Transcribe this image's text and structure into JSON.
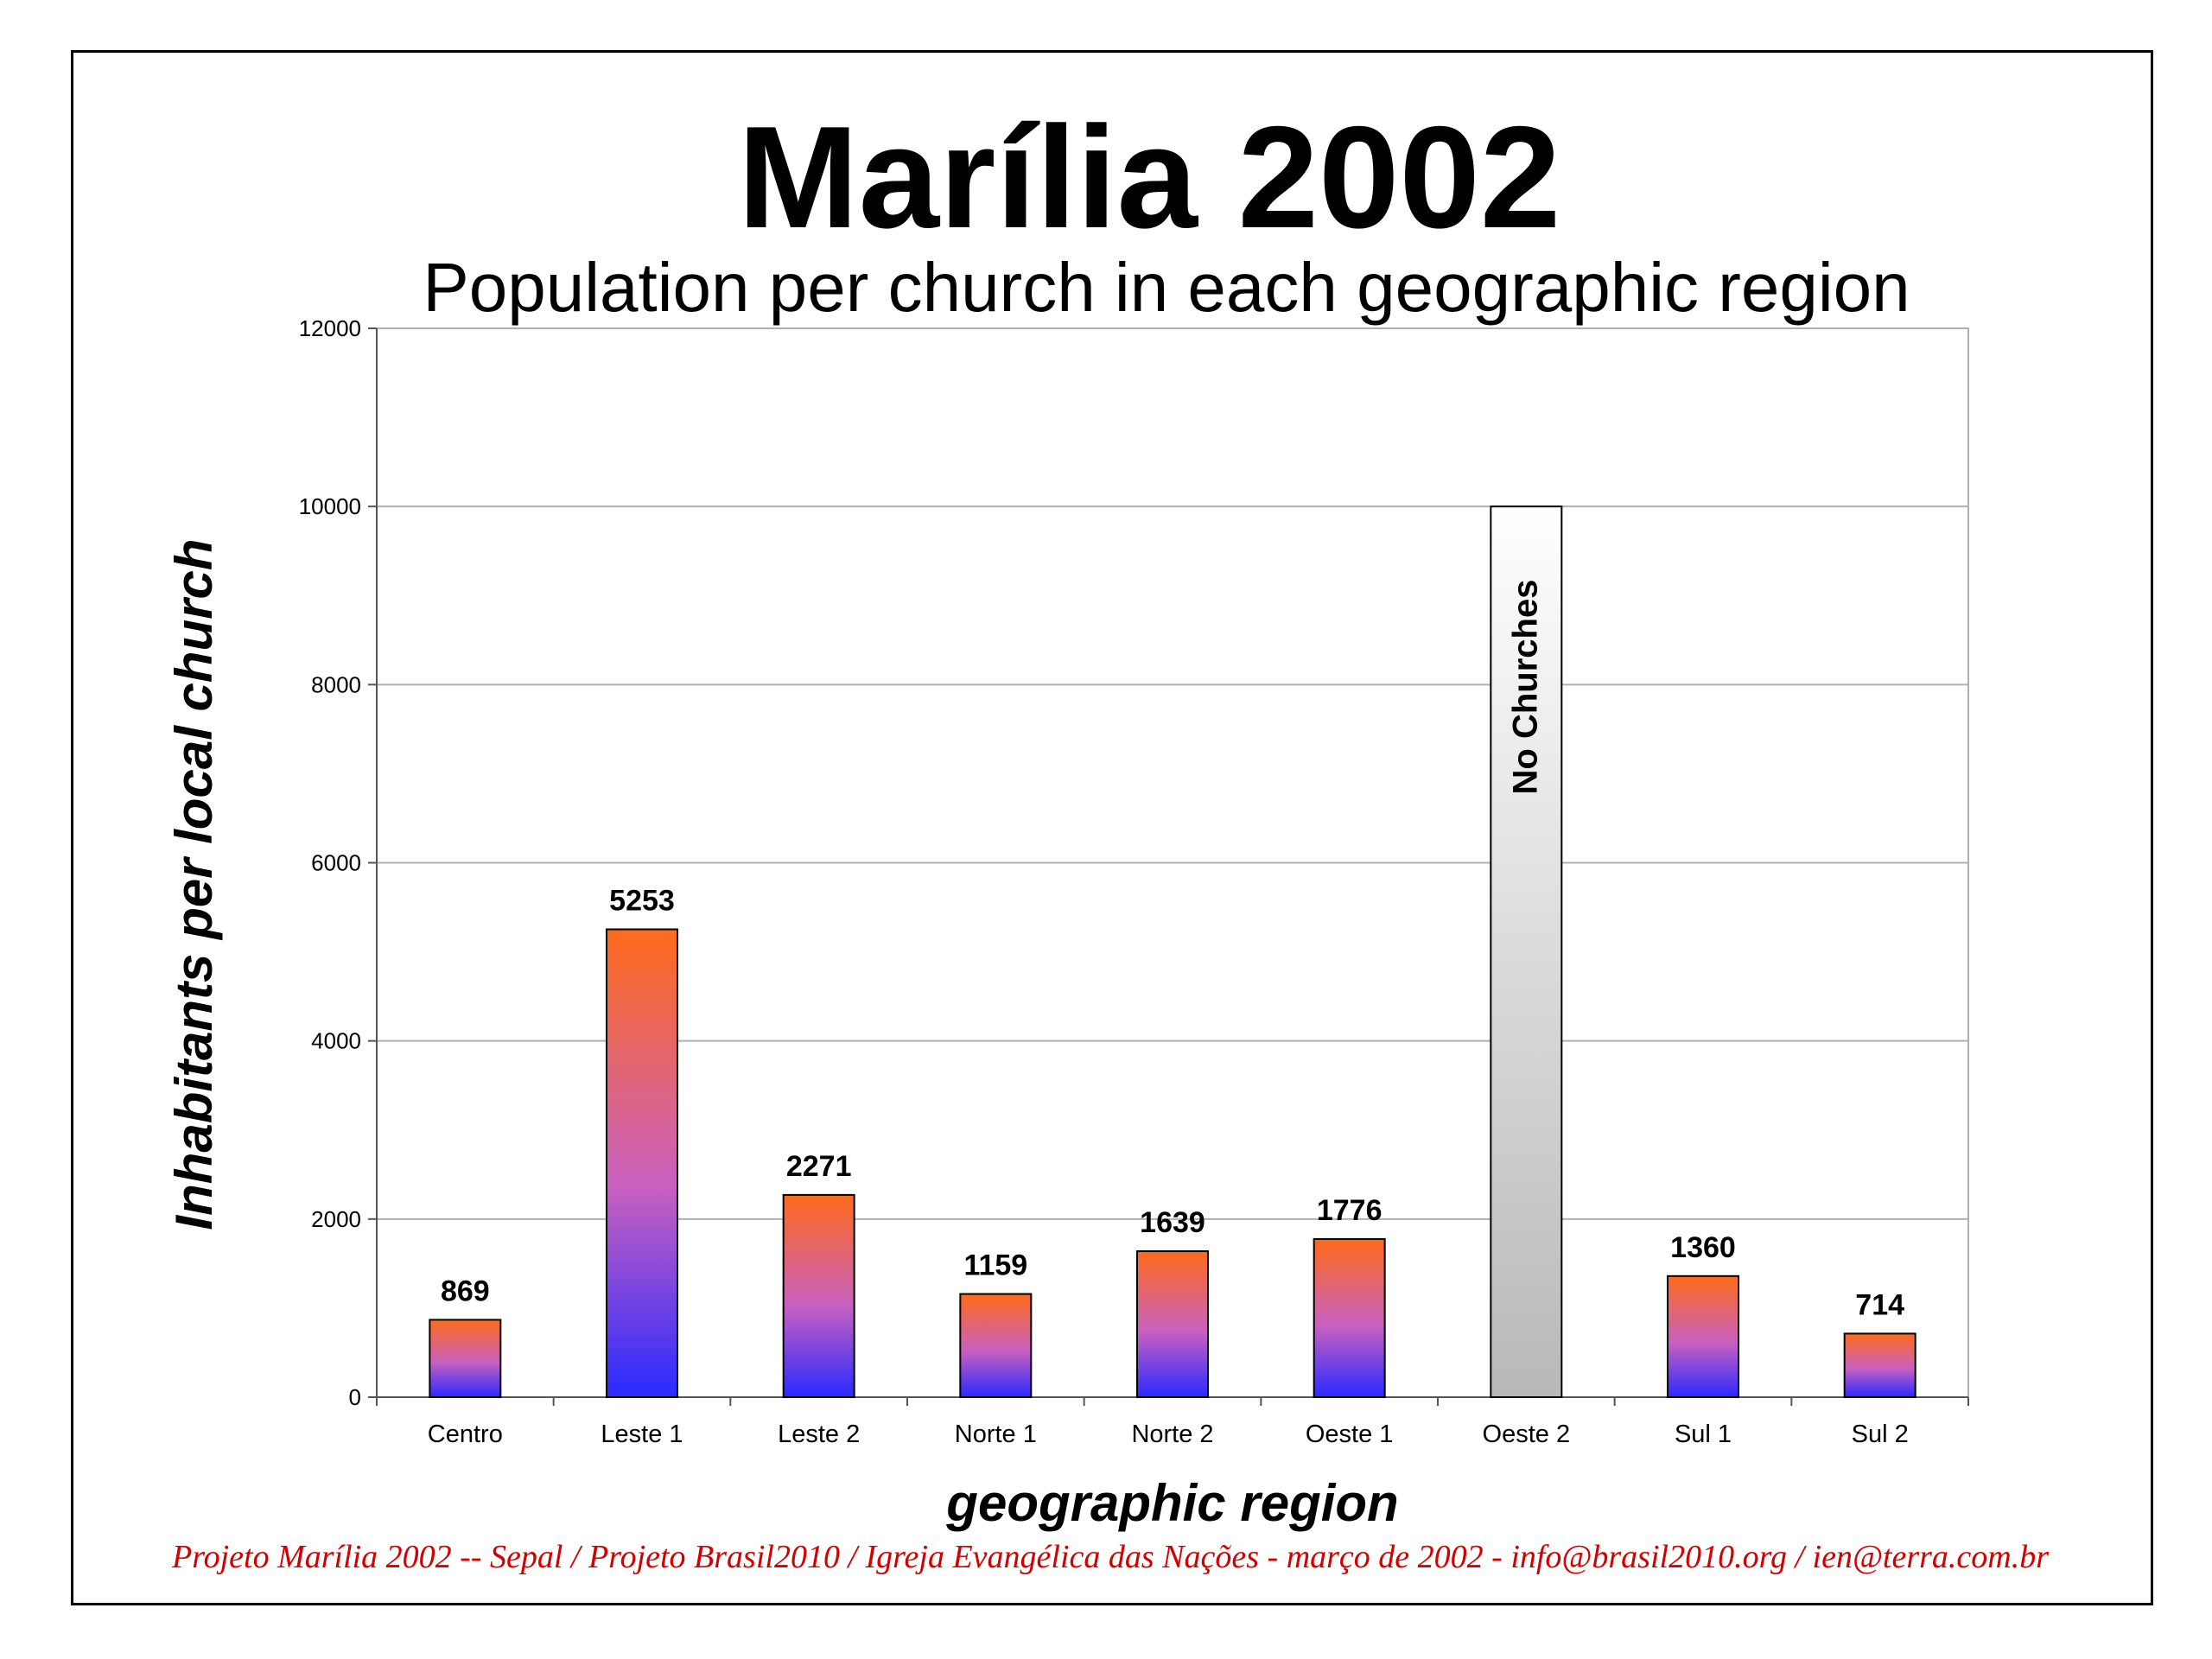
{
  "page": {
    "title": "Marília 2002",
    "subtitle": "Population per church in each geographic region",
    "credit": "Projeto Marília 2002 -- Sepal / Projeto Brasil2010 / Igreja Evangélica das Nações - março de 2002 - info@brasil2010.org / ien@terra.com.br",
    "credit_color": "#d40000"
  },
  "chart_data": {
    "type": "bar",
    "title": "Marília 2002",
    "subtitle": "Population per church in each geographic region",
    "xlabel": "geographic region",
    "ylabel": "Inhabitants per local church",
    "ylim": [
      0,
      12000
    ],
    "yticks": [
      0,
      2000,
      4000,
      6000,
      8000,
      10000,
      12000
    ],
    "categories": [
      "Centro",
      "Leste 1",
      "Leste 2",
      "Norte 1",
      "Norte 2",
      "Oeste 1",
      "Oeste 2",
      "Sul 1",
      "Sul 2"
    ],
    "values": [
      869,
      5253,
      2271,
      1159,
      1639,
      1776,
      10000,
      1360,
      714
    ],
    "data_labels": [
      "869",
      "5253",
      "2271",
      "1159",
      "1639",
      "1776",
      "",
      "1360",
      "714"
    ],
    "special_bar": {
      "category": "Oeste 2",
      "label": "No Churches",
      "style": "gray-gradient"
    },
    "grid": true,
    "colors": {
      "bar_top": "#ff6a1a",
      "bar_mid": "#c860c0",
      "bar_bottom": "#2a2aff",
      "special_top": "#ffffff",
      "special_bottom": "#b8b8b8",
      "grid": "#b0b0b0"
    }
  }
}
